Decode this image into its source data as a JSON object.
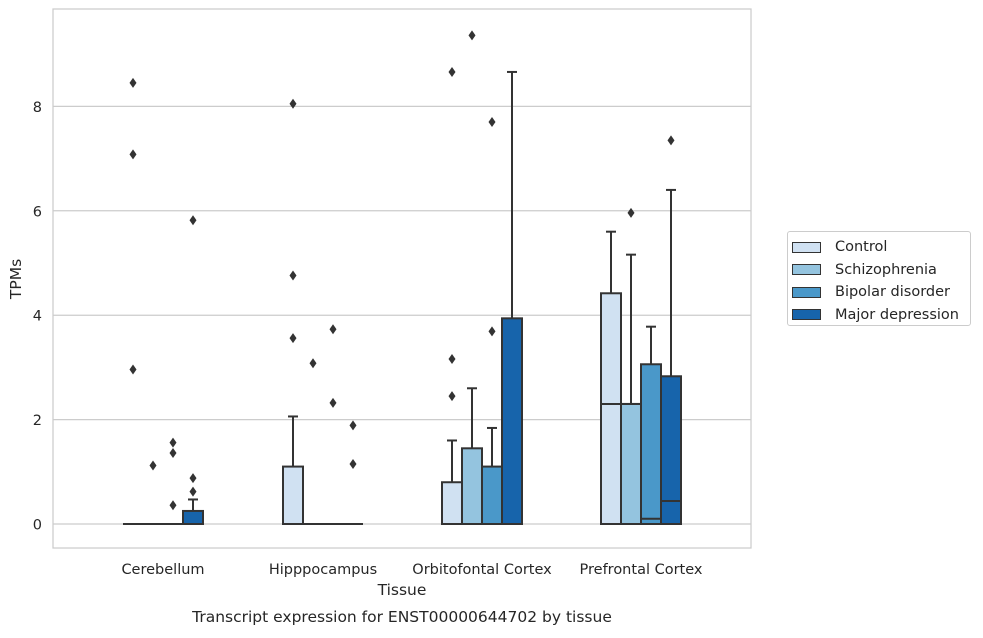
{
  "chart_data": {
    "type": "box",
    "xlabel": "Tissue",
    "ylabel": "TPMs",
    "caption": "Transcript expression for ENST00000644702 by tissue",
    "ylim": [
      -0.45,
      9.9
    ],
    "yticks": [
      0,
      2,
      4,
      6,
      8
    ],
    "grid": true,
    "legend_position": "right",
    "categories": [
      "Cerebellum",
      "Hipppocampus",
      "Orbitofontal Cortex",
      "Prefrontal Cortex"
    ],
    "series": [
      {
        "name": "Control",
        "color": "#d0e1f2",
        "boxes": [
          {
            "q1": 0,
            "median": 0,
            "q3": 0,
            "whisker_low": 0,
            "whisker_high": 0,
            "outliers": [
              8.45,
              7.08,
              2.96
            ]
          },
          {
            "q1": 0,
            "median": 0,
            "q3": 1.1,
            "whisker_low": 0,
            "whisker_high": 2.06,
            "outliers": [
              8.05,
              4.76,
              3.56
            ]
          },
          {
            "q1": 0,
            "median": 0,
            "q3": 0.8,
            "whisker_low": 0,
            "whisker_high": 1.6,
            "outliers": [
              8.66,
              3.16,
              2.45
            ]
          },
          {
            "q1": 0,
            "median": 2.3,
            "q3": 4.42,
            "whisker_low": 0,
            "whisker_high": 5.6,
            "outliers": []
          }
        ]
      },
      {
        "name": "Schizophrenia",
        "color": "#94c4df",
        "boxes": [
          {
            "q1": 0,
            "median": 0,
            "q3": 0,
            "whisker_low": 0,
            "whisker_high": 0,
            "outliers": [
              1.12
            ]
          },
          {
            "q1": 0,
            "median": 0,
            "q3": 0,
            "whisker_low": 0,
            "whisker_high": 0,
            "outliers": [
              3.08
            ]
          },
          {
            "q1": 0,
            "median": 0,
            "q3": 1.45,
            "whisker_low": 0,
            "whisker_high": 2.6,
            "outliers": [
              9.36
            ]
          },
          {
            "q1": 0,
            "median": 2.3,
            "q3": 2.3,
            "whisker_low": 0,
            "whisker_high": 5.16,
            "outliers": [
              5.96
            ]
          }
        ]
      },
      {
        "name": "Bipolar disorder",
        "color": "#4a98c9",
        "boxes": [
          {
            "q1": 0,
            "median": 0,
            "q3": 0,
            "whisker_low": 0,
            "whisker_high": 0,
            "outliers": [
              1.56,
              1.36,
              0.36
            ]
          },
          {
            "q1": 0,
            "median": 0,
            "q3": 0,
            "whisker_low": 0,
            "whisker_high": 0,
            "outliers": [
              3.73,
              2.32
            ]
          },
          {
            "q1": 0,
            "median": 0,
            "q3": 1.1,
            "whisker_low": 0,
            "whisker_high": 1.84,
            "outliers": [
              7.7,
              3.69
            ]
          },
          {
            "q1": 0,
            "median": 0.1,
            "q3": 3.06,
            "whisker_low": 0,
            "whisker_high": 3.78,
            "outliers": []
          }
        ]
      },
      {
        "name": "Major depression",
        "color": "#1764ab",
        "boxes": [
          {
            "q1": 0,
            "median": 0,
            "q3": 0.25,
            "whisker_low": 0,
            "whisker_high": 0.47,
            "outliers": [
              5.82,
              0.88,
              0.62
            ]
          },
          {
            "q1": 0,
            "median": 0,
            "q3": 0,
            "whisker_low": 0,
            "whisker_high": 0,
            "outliers": [
              1.89,
              1.15
            ]
          },
          {
            "q1": 0,
            "median": 0,
            "q3": 3.94,
            "whisker_low": 0,
            "whisker_high": 8.66,
            "outliers": []
          },
          {
            "q1": 0,
            "median": 0.44,
            "q3": 2.83,
            "whisker_low": 0,
            "whisker_high": 6.4,
            "outliers": [
              7.35
            ]
          }
        ]
      }
    ]
  }
}
